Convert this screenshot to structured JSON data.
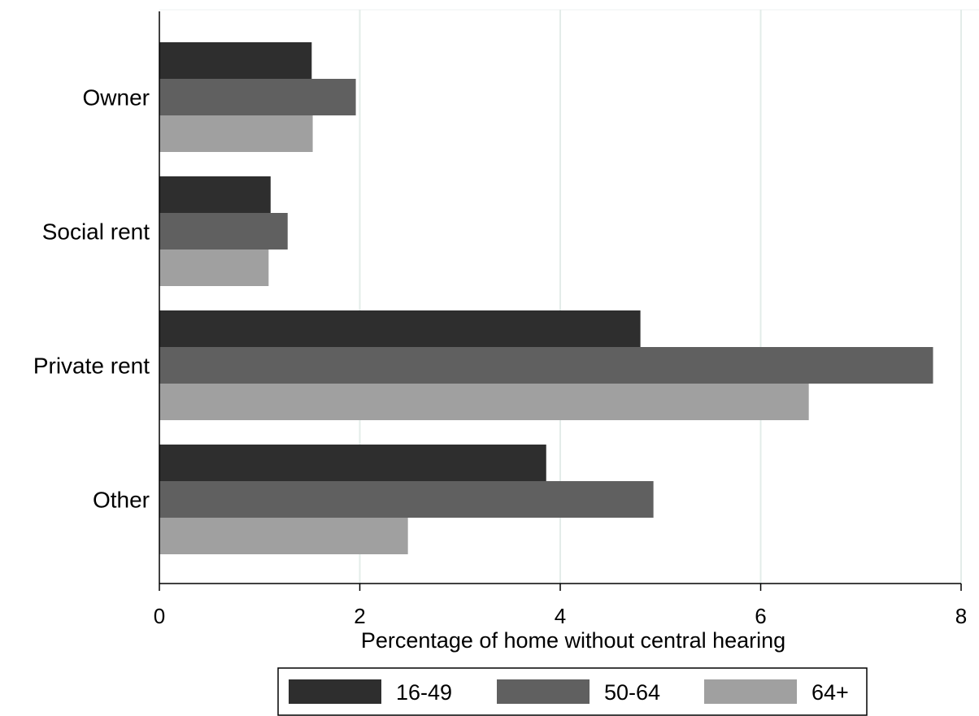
{
  "chart_data": {
    "type": "bar",
    "orientation": "horizontal",
    "categories": [
      "Owner",
      "Social rent",
      "Private rent",
      "Other"
    ],
    "series": [
      {
        "name": "16-49",
        "values": [
          1.52,
          1.11,
          4.8,
          3.86
        ],
        "color": "#2e2e2e"
      },
      {
        "name": "50-64",
        "values": [
          1.96,
          1.28,
          7.72,
          4.93
        ],
        "color": "#606060"
      },
      {
        "name": "64+",
        "values": [
          1.53,
          1.09,
          6.48,
          2.48
        ],
        "color": "#a0a0a0"
      }
    ],
    "xlabel": "Percentage of home without central hearing",
    "ylabel": "",
    "xlim": [
      0,
      8
    ],
    "x_ticks": [
      "0",
      "2",
      "4",
      "6",
      "8"
    ],
    "grid": "vertical",
    "grid_color": "#e3ece9",
    "legend_position": "bottom"
  }
}
